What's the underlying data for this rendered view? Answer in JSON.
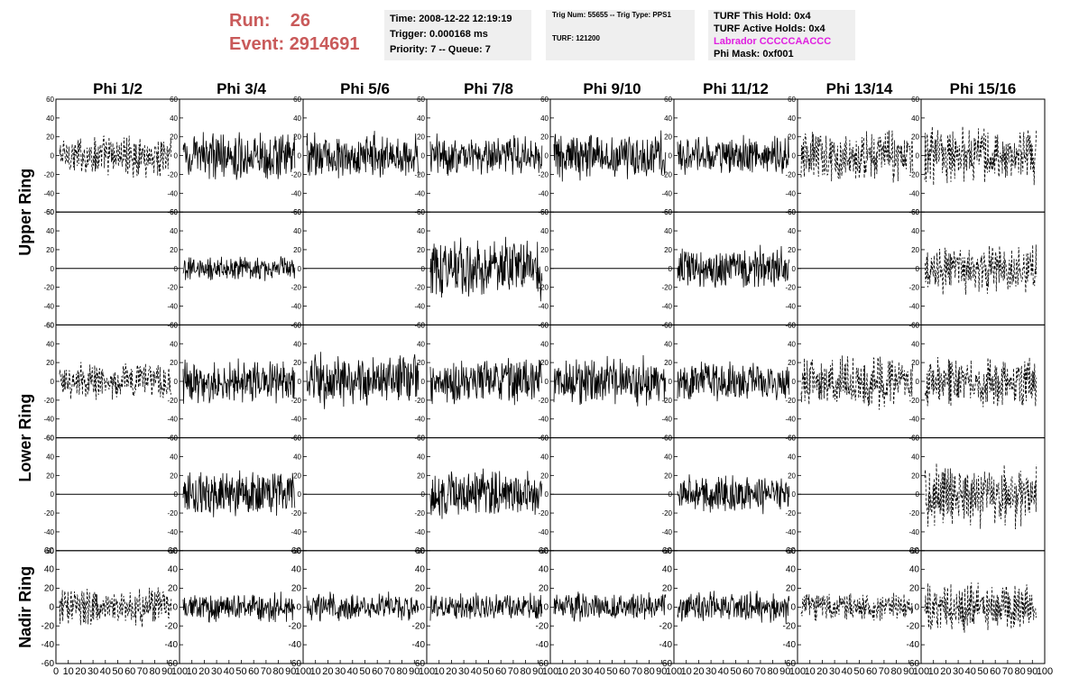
{
  "header": {
    "run_label": "Run:",
    "run_value": "26",
    "event_label": "Event:",
    "event_value": "2914691",
    "time": "Time: 2008-12-22 12:19:19",
    "trigger": "Trigger: 0.000168 ms",
    "priority": "Priority: 7 -- Queue: 7",
    "trig_num": "Trig Num: 55655 -- Trig Type: PPS1",
    "turf": "TURF: 121200",
    "turf_this_hold": "TURF This Hold: 0x4",
    "turf_active_holds": "TURF Active Holds: 0x4",
    "labrador": "Labrador CCCCCAACCC",
    "phi_mask": "Phi Mask: 0xf001",
    "colors": {
      "run_text": "#c95a5a",
      "labrador_text": "#e020e0",
      "box_bg": "#efefef"
    }
  },
  "chart_data": {
    "type": "line",
    "layout": "grid of waveform panels, 5 rows x 8 columns",
    "columns": [
      "Phi 1/2",
      "Phi 3/4",
      "Phi 5/6",
      "Phi 7/8",
      "Phi 9/10",
      "Phi 11/12",
      "Phi 13/14",
      "Phi 15/16"
    ],
    "row_labels": [
      "Upper Ring",
      "Lower Ring",
      "Nadir Ring"
    ],
    "ylim": [
      -60,
      60
    ],
    "xlim": [
      0,
      100
    ],
    "y_ticks": [
      "60",
      "40",
      "20",
      "0",
      "-20",
      "-40",
      "-60"
    ],
    "x_ticks": [
      "0",
      "10",
      "20",
      "30",
      "40",
      "50",
      "60",
      "70",
      "80",
      "90",
      "100"
    ],
    "grid": false,
    "panels": [
      {
        "row": 0,
        "col": 0,
        "style": "dashed",
        "amplitude": 18,
        "flat": false
      },
      {
        "row": 0,
        "col": 1,
        "style": "solid",
        "amplitude": 20,
        "flat": false
      },
      {
        "row": 0,
        "col": 2,
        "style": "solid",
        "amplitude": 20,
        "flat": false
      },
      {
        "row": 0,
        "col": 3,
        "style": "solid",
        "amplitude": 18,
        "flat": false
      },
      {
        "row": 0,
        "col": 4,
        "style": "solid",
        "amplitude": 22,
        "flat": false
      },
      {
        "row": 0,
        "col": 5,
        "style": "solid",
        "amplitude": 17,
        "flat": false
      },
      {
        "row": 0,
        "col": 6,
        "style": "dashed",
        "amplitude": 22,
        "flat": false
      },
      {
        "row": 0,
        "col": 7,
        "style": "dashed",
        "amplitude": 24,
        "flat": false
      },
      {
        "row": 1,
        "col": 0,
        "style": "solid",
        "amplitude": 0,
        "flat": true
      },
      {
        "row": 1,
        "col": 1,
        "style": "solid",
        "amplitude": 10,
        "flat": false
      },
      {
        "row": 1,
        "col": 2,
        "style": "solid",
        "amplitude": 0,
        "flat": true
      },
      {
        "row": 1,
        "col": 3,
        "style": "solid",
        "amplitude": 26,
        "flat": false
      },
      {
        "row": 1,
        "col": 4,
        "style": "solid",
        "amplitude": 0,
        "flat": true
      },
      {
        "row": 1,
        "col": 5,
        "style": "solid",
        "amplitude": 18,
        "flat": false
      },
      {
        "row": 1,
        "col": 6,
        "style": "solid",
        "amplitude": 0,
        "flat": true
      },
      {
        "row": 1,
        "col": 7,
        "style": "dashed",
        "amplitude": 22,
        "flat": false
      },
      {
        "row": 2,
        "col": 0,
        "style": "dashed",
        "amplitude": 16,
        "flat": false
      },
      {
        "row": 2,
        "col": 1,
        "style": "solid",
        "amplitude": 18,
        "flat": false
      },
      {
        "row": 2,
        "col": 2,
        "style": "solid",
        "amplitude": 24,
        "flat": false
      },
      {
        "row": 2,
        "col": 3,
        "style": "solid",
        "amplitude": 20,
        "flat": false
      },
      {
        "row": 2,
        "col": 4,
        "style": "solid",
        "amplitude": 20,
        "flat": false
      },
      {
        "row": 2,
        "col": 5,
        "style": "solid",
        "amplitude": 16,
        "flat": false
      },
      {
        "row": 2,
        "col": 6,
        "style": "dashed",
        "amplitude": 22,
        "flat": false
      },
      {
        "row": 2,
        "col": 7,
        "style": "dashed",
        "amplitude": 22,
        "flat": false
      },
      {
        "row": 3,
        "col": 0,
        "style": "solid",
        "amplitude": 0,
        "flat": true
      },
      {
        "row": 3,
        "col": 1,
        "style": "solid",
        "amplitude": 20,
        "flat": false
      },
      {
        "row": 3,
        "col": 2,
        "style": "solid",
        "amplitude": 0,
        "flat": true
      },
      {
        "row": 3,
        "col": 3,
        "style": "solid",
        "amplitude": 20,
        "flat": false
      },
      {
        "row": 3,
        "col": 4,
        "style": "solid",
        "amplitude": 0,
        "flat": true
      },
      {
        "row": 3,
        "col": 5,
        "style": "solid",
        "amplitude": 16,
        "flat": false
      },
      {
        "row": 3,
        "col": 6,
        "style": "solid",
        "amplitude": 0,
        "flat": true
      },
      {
        "row": 3,
        "col": 7,
        "style": "dashed",
        "amplitude": 28,
        "flat": false
      },
      {
        "row": 4,
        "col": 0,
        "style": "dashed",
        "amplitude": 16,
        "flat": false
      },
      {
        "row": 4,
        "col": 1,
        "style": "solid",
        "amplitude": 12,
        "flat": false
      },
      {
        "row": 4,
        "col": 2,
        "style": "solid",
        "amplitude": 12,
        "flat": false
      },
      {
        "row": 4,
        "col": 3,
        "style": "solid",
        "amplitude": 12,
        "flat": false
      },
      {
        "row": 4,
        "col": 4,
        "style": "solid",
        "amplitude": 12,
        "flat": false
      },
      {
        "row": 4,
        "col": 5,
        "style": "solid",
        "amplitude": 13,
        "flat": false
      },
      {
        "row": 4,
        "col": 6,
        "style": "dashed",
        "amplitude": 12,
        "flat": false
      },
      {
        "row": 4,
        "col": 7,
        "style": "dashed",
        "amplitude": 20,
        "flat": false
      }
    ]
  }
}
